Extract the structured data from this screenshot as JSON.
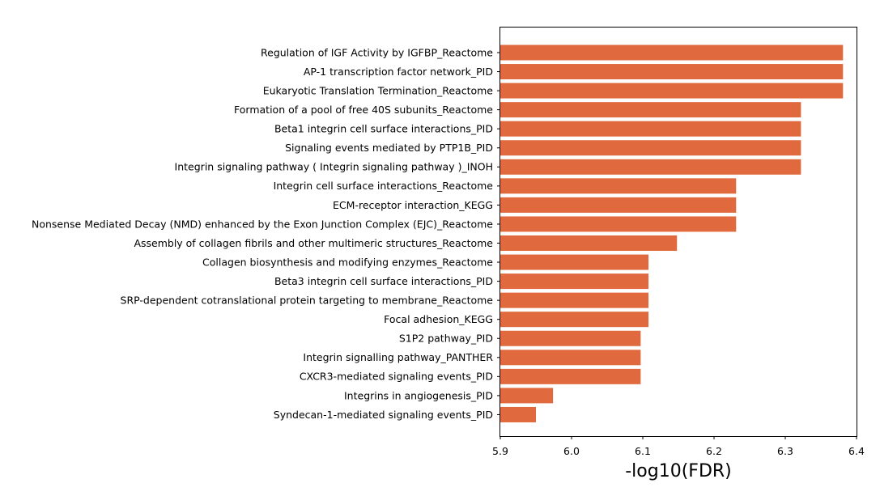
{
  "chart_data": {
    "type": "bar",
    "orientation": "horizontal",
    "categories": [
      "Regulation of IGF Activity by IGFBP_Reactome",
      "AP-1 transcription factor network_PID",
      "Eukaryotic Translation Termination_Reactome",
      "Formation of a pool of free 40S subunits_Reactome",
      "Beta1 integrin cell surface interactions_PID",
      "Signaling events mediated by PTP1B_PID",
      "Integrin signaling pathway ( Integrin signaling pathway )_INOH",
      "Integrin cell surface interactions_Reactome",
      "ECM-receptor interaction_KEGG",
      "Nonsense Mediated Decay (NMD) enhanced by the Exon Junction Complex (EJC)_Reactome",
      "Assembly of collagen fibrils and other multimeric structures_Reactome",
      "Collagen biosynthesis and modifying enzymes_Reactome",
      "Beta3 integrin cell surface interactions_PID",
      "SRP-dependent cotranslational protein targeting to membrane_Reactome",
      "Focal adhesion_KEGG",
      "S1P2 pathway_PID",
      "Integrin signalling pathway_PANTHER",
      "CXCR3-mediated signaling events_PID",
      "Integrins in angiogenesis_PID",
      "Syndecan-1-mediated signaling events_PID"
    ],
    "values": [
      6.381,
      6.381,
      6.381,
      6.322,
      6.322,
      6.322,
      6.322,
      6.231,
      6.231,
      6.231,
      6.148,
      6.108,
      6.108,
      6.108,
      6.108,
      6.097,
      6.097,
      6.097,
      5.974,
      5.95
    ],
    "xlabel": "-log10(FDR)",
    "ylabel": "",
    "title": "",
    "xlim": [
      5.9,
      6.4
    ],
    "xticks": [
      "5.9",
      "6.0",
      "6.1",
      "6.2",
      "6.3",
      "6.4"
    ],
    "bar_color": "#e06a3e",
    "grid": false
  }
}
